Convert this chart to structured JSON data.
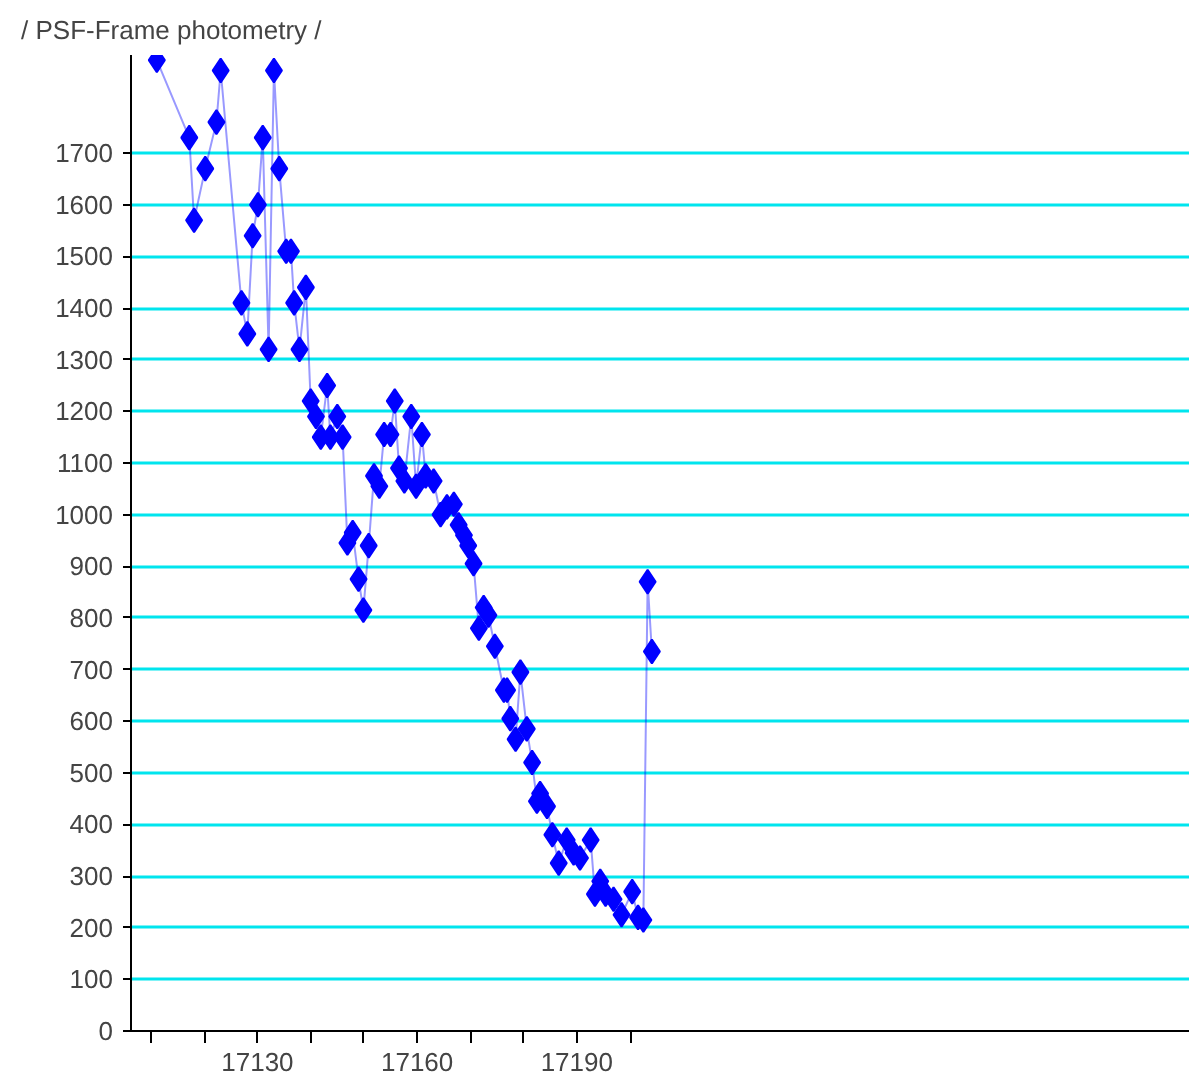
{
  "chart_data": {
    "type": "line",
    "title": "/ PSF-Frame photometry /",
    "x": [
      17111.1,
      17117.2,
      17118.1,
      17120.2,
      17122.3,
      17123.1,
      17127.0,
      17128.1,
      17129.1,
      17130.1,
      17131.0,
      17132.1,
      17133.1,
      17134.1,
      17135.4,
      17136.3,
      17136.9,
      17137.9,
      17139.1,
      17140.0,
      17141.0,
      17141.9,
      17143.1,
      17143.7,
      17145.0,
      17146.0,
      17146.9,
      17147.9,
      17149.0,
      17149.9,
      17150.9,
      17151.9,
      17152.9,
      17153.8,
      17155.0,
      17155.8,
      17156.6,
      17157.6,
      17158.9,
      17159.8,
      17160.9,
      17161.6,
      17163.1,
      17164.4,
      17165.6,
      17166.9,
      17167.8,
      17168.8,
      17169.6,
      17170.6,
      17171.6,
      17172.5,
      17173.4,
      17174.6,
      17176.3,
      17176.9,
      17177.5,
      17178.5,
      17179.4,
      17180.6,
      17181.6,
      17182.5,
      17183.1,
      17184.4,
      17185.4,
      17186.6,
      17188.1,
      17189.4,
      17190.6,
      17192.6,
      17193.4,
      17194.4,
      17195.4,
      17196.9,
      17198.4,
      17200.4,
      17201.5,
      17202.5,
      17203.3,
      17204.1
    ],
    "series": [
      {
        "color": "#0000ff",
        "values": [
          1880,
          1730,
          1570,
          1670,
          1760,
          1860,
          1410,
          1350,
          1540,
          1600,
          1730,
          1320,
          1860,
          1670,
          1510,
          1510,
          1410,
          1320,
          1440,
          1220,
          1190,
          1150,
          1250,
          1150,
          1190,
          1150,
          945,
          965,
          875,
          815,
          940,
          1075,
          1055,
          1155,
          1155,
          1220,
          1090,
          1065,
          1190,
          1055,
          1155,
          1075,
          1065,
          1000,
          1015,
          1020,
          980,
          960,
          940,
          905,
          780,
          820,
          805,
          745,
          660,
          660,
          605,
          565,
          695,
          585,
          520,
          445,
          460,
          435,
          380,
          325,
          370,
          345,
          335,
          370,
          265,
          290,
          265,
          255,
          225,
          270,
          220,
          215,
          870,
          735
        ]
      }
    ],
    "xlim": [
      17106.25,
      17305
    ],
    "ylim": [
      0,
      1890
    ],
    "xticks": [
      {
        "value": 17110,
        "label": null
      },
      {
        "value": 17120,
        "label": null
      },
      17130,
      {
        "value": 17140,
        "label": null
      },
      {
        "value": 17150,
        "label": null
      },
      17160,
      {
        "value": 17170,
        "label": null
      },
      {
        "value": 17180,
        "label": null
      },
      17190,
      {
        "value": 17200,
        "label": null
      }
    ],
    "yticks": [
      0,
      100,
      200,
      300,
      400,
      500,
      600,
      700,
      800,
      900,
      1000,
      1100,
      1200,
      1300,
      1400,
      1500,
      1600,
      1700
    ],
    "grid": "y",
    "marker": "diamond",
    "line_style": "solid"
  }
}
